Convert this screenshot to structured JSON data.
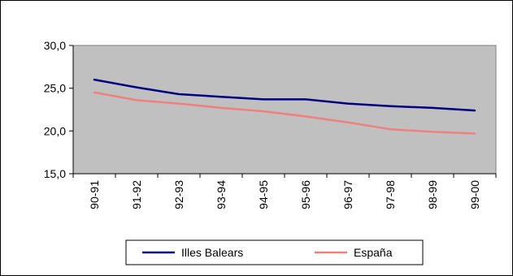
{
  "chart_data": {
    "type": "line",
    "title": "",
    "xlabel": "",
    "ylabel": "",
    "categories": [
      "90-91",
      "91-92",
      "92-93",
      "93-94",
      "94-95",
      "95-96",
      "96-97",
      "97-98",
      "98-99",
      "99-00"
    ],
    "ylim": [
      15.0,
      30.0
    ],
    "yticks": [
      "15,0",
      "20,0",
      "25,0",
      "30,0"
    ],
    "ytick_values": [
      15,
      20,
      25,
      30
    ],
    "grid": false,
    "legend_position": "bottom",
    "series": [
      {
        "name": "Illes Balears",
        "color": "#000080",
        "values": [
          26.0,
          25.1,
          24.3,
          24.0,
          23.7,
          23.7,
          23.2,
          22.9,
          22.7,
          22.4
        ]
      },
      {
        "name": "España",
        "color": "#f08080",
        "values": [
          24.5,
          23.6,
          23.2,
          22.7,
          22.3,
          21.7,
          21.0,
          20.2,
          19.9,
          19.7
        ]
      }
    ]
  }
}
